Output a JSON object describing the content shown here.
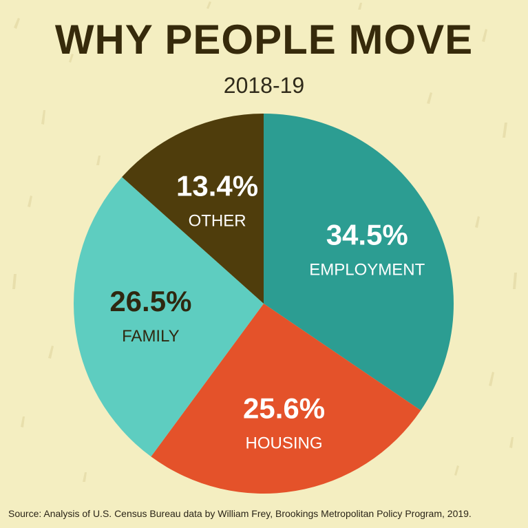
{
  "header": {
    "title": "WHY PEOPLE MOVE",
    "subtitle": "2018-19"
  },
  "chart_data": {
    "type": "pie",
    "title": "WHY PEOPLE MOVE",
    "subtitle": "2018-19",
    "slices": [
      {
        "label": "EMPLOYMENT",
        "value": 34.5,
        "value_label": "34.5%",
        "color": "#2c9d92",
        "text_color": "#ffffff"
      },
      {
        "label": "HOUSING",
        "value": 25.6,
        "value_label": "25.6%",
        "color": "#e4522a",
        "text_color": "#ffffff"
      },
      {
        "label": "FAMILY",
        "value": 26.5,
        "value_label": "26.5%",
        "color": "#5ecdc0",
        "text_color": "#2f2810"
      },
      {
        "label": "OTHER",
        "value": 13.4,
        "value_label": "13.4%",
        "color": "#4f3d0c",
        "text_color": "#ffffff"
      }
    ],
    "start_position": "top, clockwise"
  },
  "footer": {
    "source": "Source: Analysis of U.S. Census Bureau data by William Frey, Brookings Metropolitan Policy Program, 2019."
  },
  "colors": {
    "background": "#f4eec1",
    "title": "#362a0b"
  }
}
